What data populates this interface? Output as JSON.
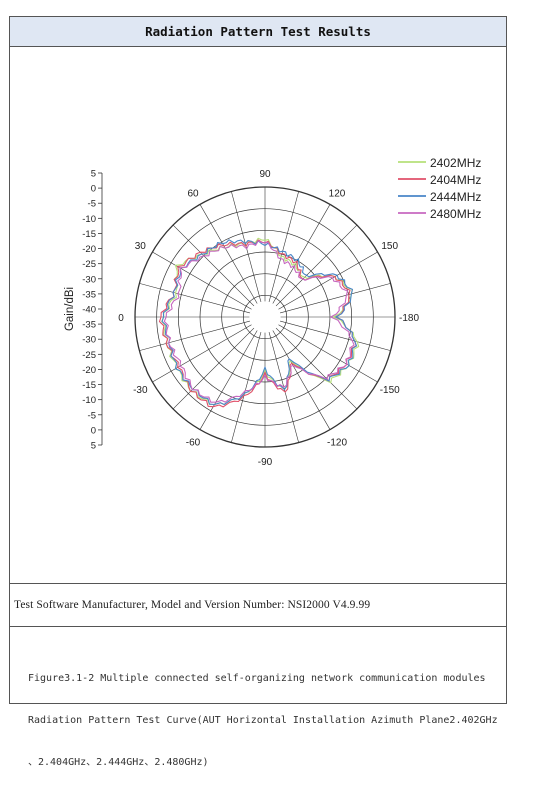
{
  "header": {
    "title": "Radiation Pattern Test Results"
  },
  "meta": {
    "software_line": "Test Software Manufacturer, Model and Version Number: NSI2000 V4.9.99"
  },
  "caption": {
    "line1": "Figure3.1-2  Multiple connected self-organizing network communication modules",
    "line2": "Radiation Pattern Test Curve(AUT Horizontal Installation Azimuth Plane2.402GHz",
    "line3": "、2.404GHz、2.444GHz、2.480GHz)"
  },
  "chart_data": {
    "type": "polar-line",
    "ylabel": "Gain/dBi",
    "radial_ticks": [
      "5",
      "0",
      "-5",
      "-10",
      "-15",
      "-20",
      "-25",
      "-30",
      "-35",
      "-40",
      "-35",
      "-30",
      "-25",
      "-20",
      "-15",
      "-10",
      "-5",
      "0",
      "5"
    ],
    "radial_range": [
      -45,
      5
    ],
    "angle_labels": [
      {
        "angle": -90,
        "label": "-90"
      },
      {
        "angle": -60,
        "label": "-60"
      },
      {
        "angle": -120,
        "label": "-120"
      },
      {
        "angle": -30,
        "label": "-30"
      },
      {
        "angle": -150,
        "label": "-150"
      },
      {
        "angle": 0,
        "label": "0"
      },
      {
        "angle": -180,
        "label": "-180"
      },
      {
        "angle": 30,
        "label": "30"
      },
      {
        "angle": 150,
        "label": "150"
      },
      {
        "angle": 60,
        "label": "60"
      },
      {
        "angle": 120,
        "label": "120"
      },
      {
        "angle": 90,
        "label": "90"
      }
    ],
    "grid": true,
    "legend_position": "top-right",
    "angles": [
      0,
      15,
      30,
      45,
      60,
      75,
      90,
      105,
      120,
      135,
      150,
      165,
      180,
      195,
      210,
      225,
      240,
      255,
      270,
      285,
      300,
      315,
      330,
      345
    ],
    "series": [
      {
        "name": "2402MHz",
        "color": "#b6e07a",
        "values": [
          -6,
          -10,
          -6,
          -11,
          -14,
          -16,
          -15,
          -21,
          -22,
          -24,
          -14,
          -10,
          -18,
          -8,
          -8,
          -10,
          -26,
          -16,
          -24,
          -14,
          -6,
          -5,
          -6,
          -6
        ]
      },
      {
        "name": "2404MHz",
        "color": "#e0506a",
        "values": [
          -5,
          -9,
          -7,
          -10,
          -13,
          -16,
          -16,
          -20,
          -21,
          -25,
          -14,
          -11,
          -17,
          -9,
          -9,
          -11,
          -25,
          -15,
          -23,
          -13,
          -5,
          -5,
          -7,
          -6
        ]
      },
      {
        "name": "2444MHz",
        "color": "#4a86c8",
        "values": [
          -6,
          -9,
          -8,
          -11,
          -12,
          -15,
          -17,
          -19,
          -20,
          -23,
          -13,
          -10,
          -17,
          -9,
          -8,
          -11,
          -27,
          -16,
          -25,
          -14,
          -6,
          -6,
          -6,
          -7
        ]
      },
      {
        "name": "2480MHz",
        "color": "#c768c0",
        "values": [
          -7,
          -11,
          -8,
          -12,
          -14,
          -17,
          -16,
          -22,
          -23,
          -25,
          -15,
          -12,
          -19,
          -10,
          -9,
          -12,
          -24,
          -17,
          -22,
          -15,
          -7,
          -6,
          -8,
          -7
        ]
      }
    ]
  }
}
